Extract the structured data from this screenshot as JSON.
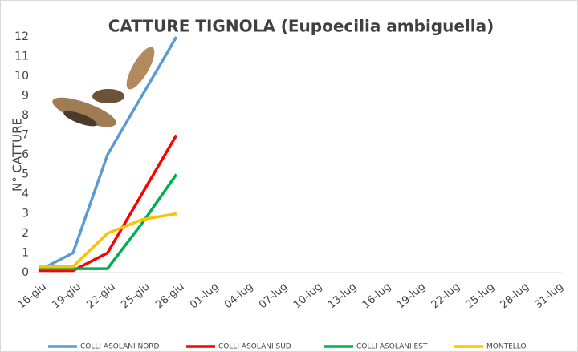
{
  "chart_data": {
    "type": "line",
    "title": "CATTURE TIGNOLA (Eupoecilia ambiguella)",
    "y_label": "N° CATTURE",
    "categories": [
      "16-giu",
      "19-giu",
      "22-giu",
      "25-giu",
      "28-giu",
      "01-lug",
      "04-lug",
      "07-lug",
      "10-lug",
      "13-lug",
      "16-lug",
      "19-lug",
      "22-lug",
      "25-lug",
      "28-lug",
      "31-lug"
    ],
    "series": [
      {
        "name": "COLLI ASOLANI NORD",
        "color": "#5b9bd5",
        "values": [
          0.1,
          1,
          6,
          9,
          12,
          null,
          null,
          null,
          null,
          null,
          null,
          null,
          null,
          null,
          null,
          null
        ]
      },
      {
        "name": "COLLI ASOLANI SUD",
        "color": "#ff0000",
        "values": [
          0.1,
          0.1,
          1,
          4,
          7,
          null,
          null,
          null,
          null,
          null,
          null,
          null,
          null,
          null,
          null,
          null
        ]
      },
      {
        "name": "COLLI ASOLANI EST",
        "color": "#00b050",
        "values": [
          0.2,
          0.2,
          0.2,
          2.5,
          5,
          null,
          null,
          null,
          null,
          null,
          null,
          null,
          null,
          null,
          null,
          null
        ]
      },
      {
        "name": "MONTELLO",
        "color": "#ffc000",
        "values": [
          0.3,
          0.3,
          2,
          2.7,
          3,
          null,
          null,
          null,
          null,
          null,
          null,
          null,
          null,
          null,
          null,
          null
        ]
      }
    ],
    "ylim": [
      0,
      12
    ],
    "yticks": [
      0,
      1,
      2,
      3,
      4,
      5,
      6,
      7,
      8,
      9,
      10,
      11,
      12
    ],
    "grid": false
  }
}
